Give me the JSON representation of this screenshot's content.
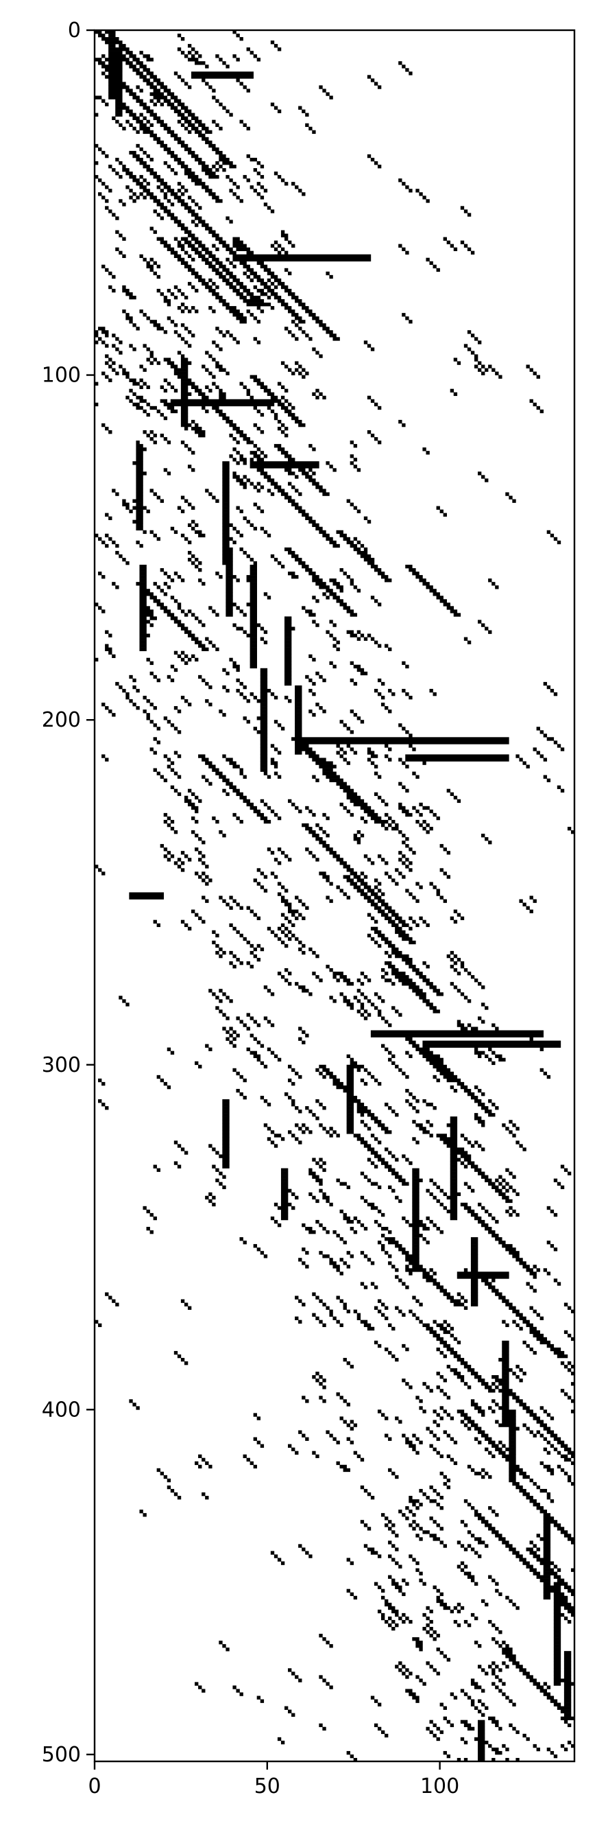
{
  "chart_data": {
    "type": "heatmap",
    "title": "",
    "xlabel": "",
    "ylabel": "",
    "xlim": [
      0,
      139
    ],
    "ylim": [
      502,
      0
    ],
    "grid": false,
    "colors": {
      "filled": "#000000",
      "empty": "#ffffff",
      "axes": "#000000"
    },
    "x_ticks": [
      {
        "value": 0,
        "label": "0"
      },
      {
        "value": 50,
        "label": "50"
      },
      {
        "value": 100,
        "label": "100"
      }
    ],
    "y_ticks": [
      {
        "value": 0,
        "label": "0"
      },
      {
        "value": 100,
        "label": "100"
      },
      {
        "value": 200,
        "label": "200"
      },
      {
        "value": 300,
        "label": "300"
      },
      {
        "value": 400,
        "label": "400"
      },
      {
        "value": 500,
        "label": "500"
      }
    ],
    "diagonal_streaks": [
      [
        0,
        0,
        40
      ],
      [
        3,
        0,
        30
      ],
      [
        0,
        8,
        35
      ],
      [
        6,
        20,
        30
      ],
      [
        10,
        35,
        30
      ],
      [
        18,
        60,
        25
      ],
      [
        25,
        60,
        20
      ],
      [
        30,
        55,
        30
      ],
      [
        8,
        40,
        40
      ],
      [
        40,
        60,
        30
      ],
      [
        45,
        125,
        20
      ],
      [
        50,
        130,
        20
      ],
      [
        55,
        150,
        20
      ],
      [
        52,
        120,
        15
      ],
      [
        58,
        205,
        25
      ],
      [
        62,
        210,
        20
      ],
      [
        72,
        245,
        20
      ],
      [
        80,
        260,
        20
      ],
      [
        84,
        270,
        15
      ],
      [
        60,
        230,
        30
      ],
      [
        88,
        290,
        15
      ],
      [
        95,
        295,
        20
      ],
      [
        100,
        320,
        20
      ],
      [
        106,
        340,
        20
      ],
      [
        110,
        360,
        25
      ],
      [
        115,
        390,
        30
      ],
      [
        120,
        420,
        30
      ],
      [
        125,
        440,
        30
      ],
      [
        130,
        450,
        30
      ],
      [
        20,
        95,
        25
      ],
      [
        12,
        160,
        20
      ],
      [
        30,
        210,
        20
      ],
      [
        45,
        100,
        15
      ],
      [
        70,
        145,
        15
      ],
      [
        90,
        155,
        15
      ],
      [
        65,
        300,
        20
      ],
      [
        75,
        320,
        15
      ],
      [
        85,
        350,
        20
      ],
      [
        95,
        375,
        20
      ],
      [
        105,
        400,
        20
      ],
      [
        110,
        430,
        20
      ],
      [
        118,
        470,
        20
      ]
    ],
    "vertical_streaks": [
      [
        4,
        0,
        20
      ],
      [
        6,
        5,
        20
      ],
      [
        12,
        120,
        25
      ],
      [
        13,
        155,
        25
      ],
      [
        25,
        95,
        20
      ],
      [
        37,
        125,
        30
      ],
      [
        38,
        150,
        20
      ],
      [
        45,
        155,
        30
      ],
      [
        48,
        185,
        30
      ],
      [
        55,
        170,
        20
      ],
      [
        58,
        190,
        20
      ],
      [
        73,
        300,
        20
      ],
      [
        92,
        330,
        30
      ],
      [
        103,
        315,
        30
      ],
      [
        109,
        350,
        20
      ],
      [
        118,
        380,
        25
      ],
      [
        120,
        400,
        20
      ],
      [
        130,
        430,
        25
      ],
      [
        133,
        450,
        30
      ],
      [
        136,
        470,
        20
      ],
      [
        111,
        490,
        15
      ],
      [
        37,
        310,
        20
      ],
      [
        54,
        330,
        15
      ]
    ],
    "horizontal_bands": [
      [
        60,
        205,
        60
      ],
      [
        90,
        210,
        30
      ],
      [
        80,
        290,
        50
      ],
      [
        95,
        293,
        40
      ],
      [
        40,
        65,
        40
      ],
      [
        22,
        107,
        30
      ],
      [
        45,
        125,
        20
      ],
      [
        105,
        360,
        15
      ],
      [
        10,
        250,
        10
      ],
      [
        28,
        12,
        18
      ]
    ],
    "scatter_density": 0.02,
    "random_seed": 20240611
  }
}
